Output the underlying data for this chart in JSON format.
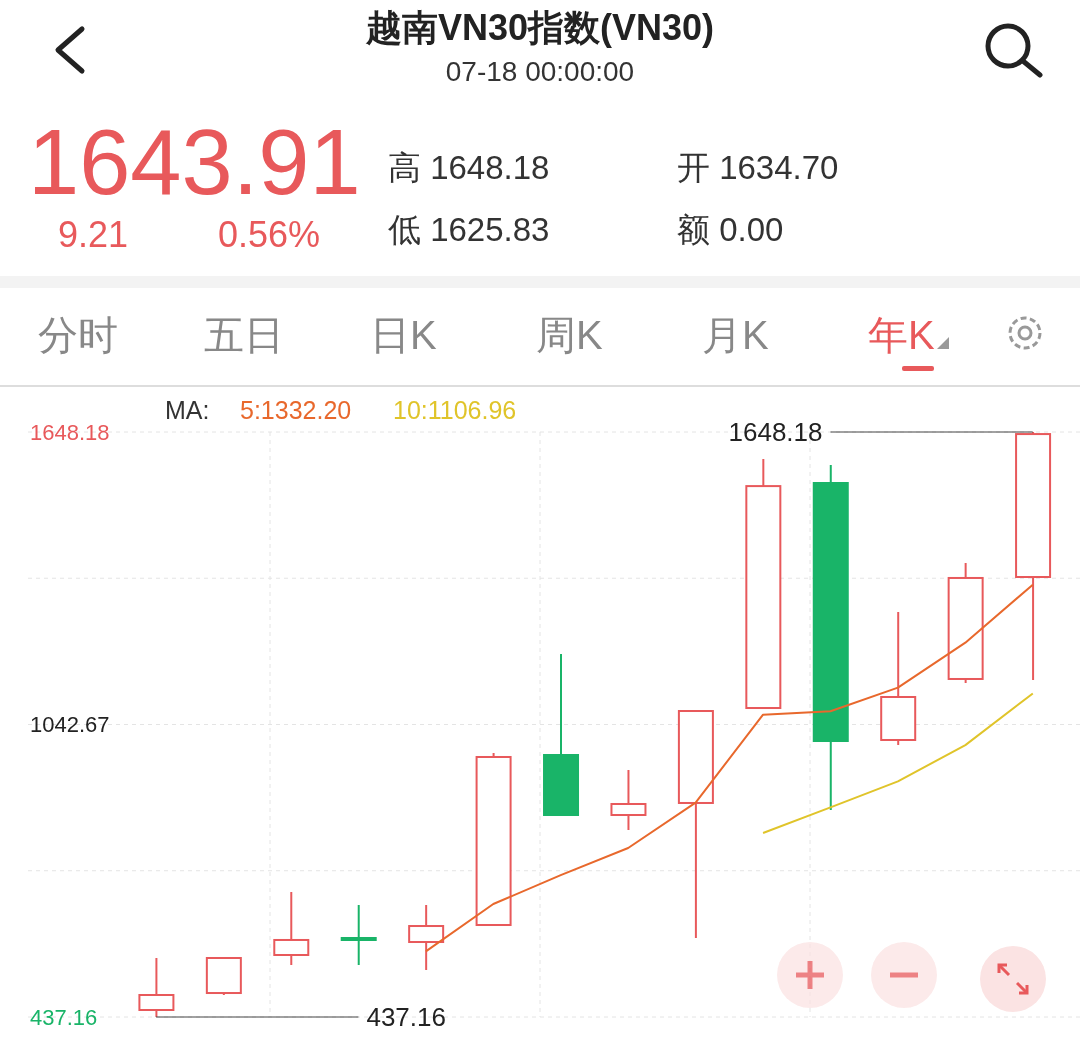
{
  "chart_data": {
    "type": "candlestick",
    "title": "越南VN30指数(VN30)",
    "subtitle": "07-18 00:00:00",
    "categories": [
      null,
      null,
      null,
      null,
      null,
      null,
      null,
      null,
      null,
      null,
      null,
      null,
      null,
      null
    ],
    "ohlc": [
      [
        451.65,
        559.3,
        437.16,
        482.7
      ],
      [
        486.8,
        559.3,
        482.7,
        559.3
      ],
      [
        565.5,
        695.9,
        544.8,
        596.6
      ],
      [
        600.7,
        669.0,
        544.8,
        600.0
      ],
      [
        592.4,
        669.0,
        534.5,
        625.5
      ],
      [
        627.6,
        983.7,
        627.6,
        975.4
      ],
      [
        979.5,
        1188.6,
        855.3,
        855.3
      ],
      [
        855.3,
        948.5,
        824.3,
        878.1
      ],
      [
        880.2,
        1070.6,
        600.7,
        1070.6
      ],
      [
        1076.8,
        1592.3,
        1076.8,
        1536.2
      ],
      [
        1542.6,
        1579.8,
        865.7,
        1008.5
      ],
      [
        1010.6,
        1275.6,
        1000.2,
        1099.6
      ],
      [
        1136.9,
        1377.0,
        1128.6,
        1346.0
      ],
      [
        1348.0,
        1648.18,
        1134.8,
        1643.91
      ]
    ],
    "colors": [
      "#e8595b",
      "#e8595b",
      "#e8595b",
      "#19b468",
      "#e8595b",
      "#e8595b",
      "#19b468",
      "#e8595b",
      "#e8595b",
      "#e8595b",
      "#19b468",
      "#e8595b",
      "#e8595b",
      "#e8595b"
    ],
    "series": [
      {
        "type": "line",
        "color": "#e8682c",
        "values": [
          null,
          null,
          null,
          null,
          573,
          671,
          731,
          787,
          881,
          1063,
          1070,
          1119,
          1212,
          1332.2
        ]
      },
      {
        "type": "line",
        "color": "#e0c42a",
        "values": [
          null,
          null,
          null,
          null,
          null,
          null,
          null,
          null,
          null,
          818,
          871,
          925,
          1000,
          1106.96
        ]
      }
    ],
    "ylim": [
      437.16,
      1648.18
    ],
    "yticks": [
      437.16,
      {
        "value": 739.92,
        "label": null
      },
      1042.67,
      {
        "value": 1345.43,
        "label": null
      },
      1648.18
    ],
    "grid": true,
    "tick_labels": "y",
    "annotations": [
      "1643.91",
      "9.21",
      "0.56%",
      "高 1648.18",
      "低 1625.83",
      "开 1634.70",
      "额 0.00",
      "分时",
      "五日",
      "日K",
      "周K",
      "月K",
      "年K",
      "MA:",
      "5:1332.20",
      "10:1106.96",
      "1648.18",
      "437.16"
    ]
  }
}
